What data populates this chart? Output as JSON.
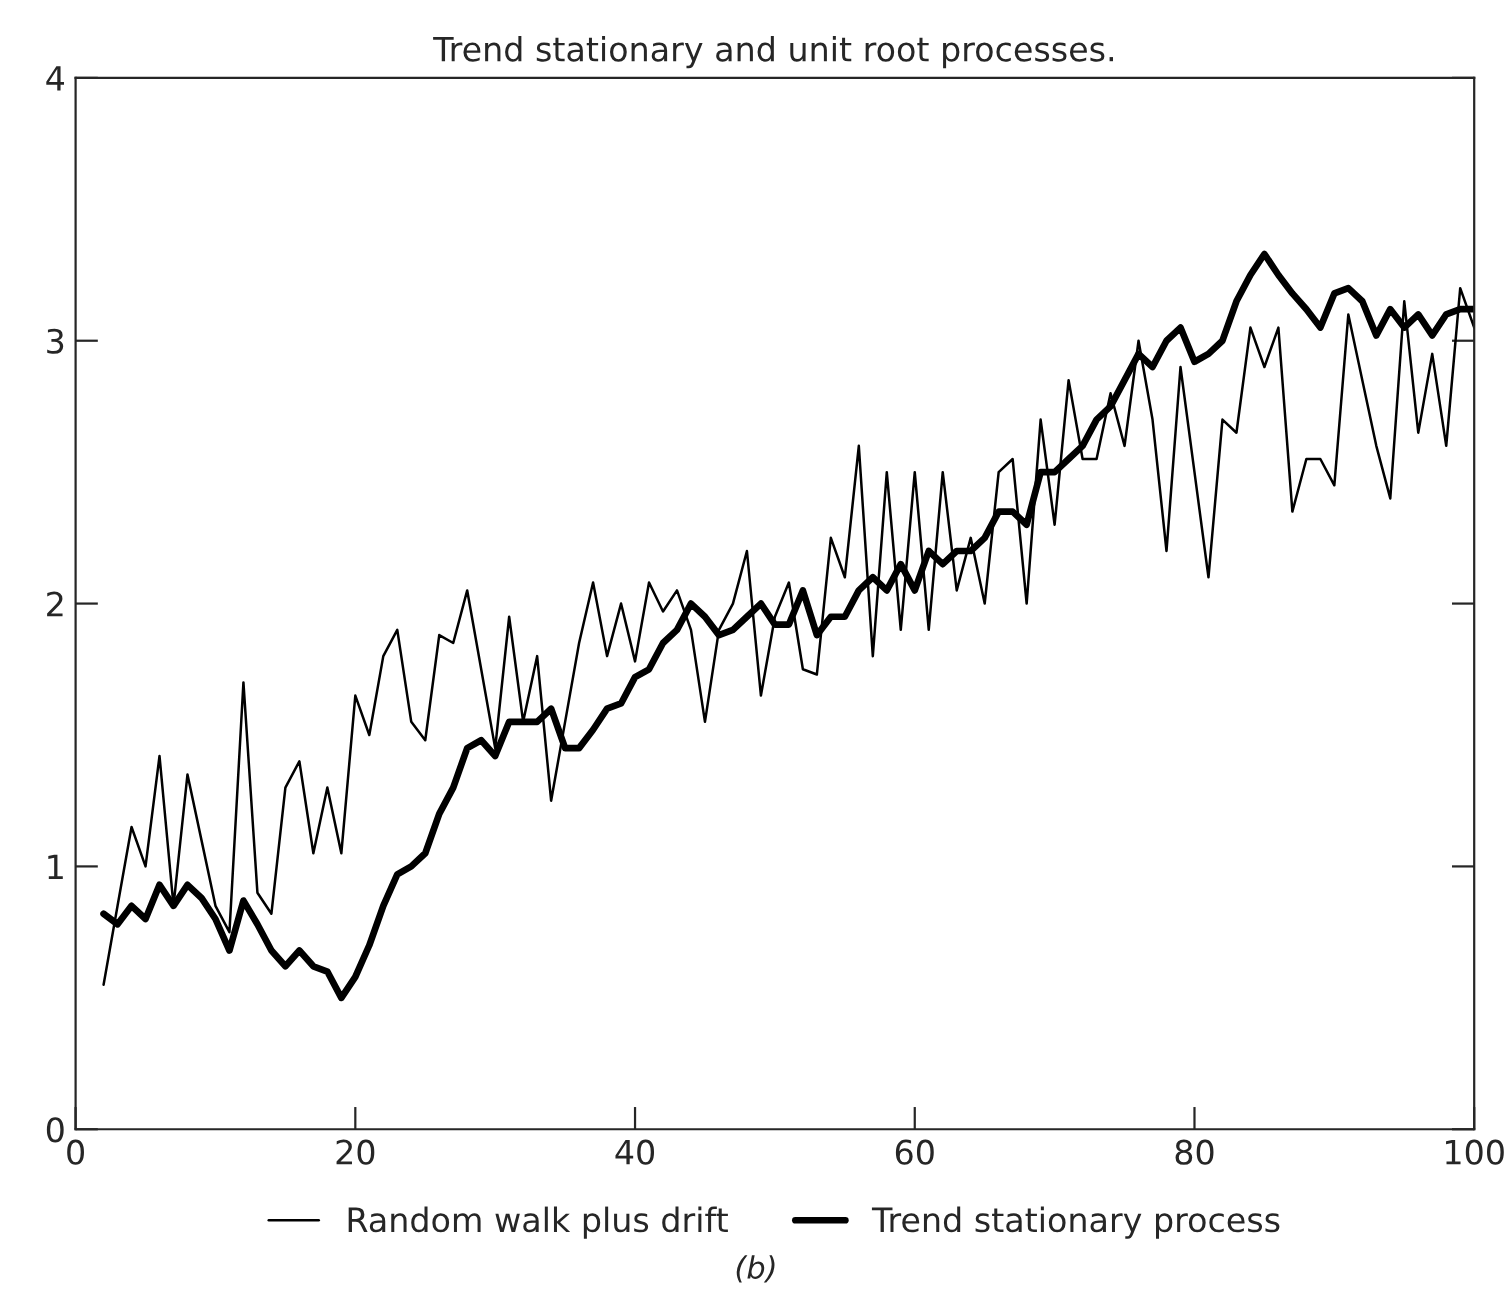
{
  "chart_data": {
    "type": "line",
    "title": "Trend stationary and unit root processes.",
    "x": [
      2,
      3,
      4,
      5,
      6,
      7,
      8,
      9,
      10,
      11,
      12,
      13,
      14,
      15,
      16,
      17,
      18,
      19,
      20,
      21,
      22,
      23,
      24,
      25,
      26,
      27,
      28,
      29,
      30,
      31,
      32,
      33,
      34,
      35,
      36,
      37,
      38,
      39,
      40,
      41,
      42,
      43,
      44,
      45,
      46,
      47,
      48,
      49,
      50,
      51,
      52,
      53,
      54,
      55,
      56,
      57,
      58,
      59,
      60,
      61,
      62,
      63,
      64,
      65,
      66,
      67,
      68,
      69,
      70,
      71,
      72,
      73,
      74,
      75,
      76,
      77,
      78,
      79,
      80,
      81,
      82,
      83,
      84,
      85,
      86,
      87,
      88,
      89,
      90,
      91,
      92,
      93,
      94,
      95,
      96,
      97,
      98,
      99,
      100
    ],
    "series": [
      {
        "name": "Random walk plus drift",
        "color": "#000000",
        "values": [
          0.55,
          0.85,
          1.15,
          1.0,
          1.42,
          0.85,
          1.35,
          1.1,
          0.85,
          0.75,
          1.7,
          0.9,
          0.82,
          1.3,
          1.4,
          1.05,
          1.3,
          1.05,
          1.65,
          1.5,
          1.8,
          1.9,
          1.55,
          1.48,
          1.88,
          1.85,
          2.05,
          1.75,
          1.45,
          1.95,
          1.55,
          1.8,
          1.25,
          1.55,
          1.85,
          2.08,
          1.8,
          2.0,
          1.78,
          2.08,
          1.97,
          2.05,
          1.9,
          1.55,
          1.9,
          2.0,
          2.2,
          1.65,
          1.95,
          2.08,
          1.75,
          1.73,
          2.25,
          2.1,
          2.6,
          1.8,
          2.5,
          1.9,
          2.5,
          1.9,
          2.5,
          2.05,
          2.25,
          2.0,
          2.5,
          2.55,
          2.0,
          2.7,
          2.3,
          2.85,
          2.55,
          2.55,
          2.8,
          2.6,
          3.0,
          2.7,
          2.2,
          2.9,
          2.5,
          2.1,
          2.7,
          2.65,
          3.05,
          2.9,
          3.05,
          2.35,
          2.55,
          2.55,
          2.45,
          3.1,
          2.85,
          2.6,
          2.4,
          3.15,
          2.65,
          2.95,
          2.6,
          3.2,
          3.05
        ]
      },
      {
        "name": "Trend stationary process",
        "color": "#000000",
        "values": [
          0.82,
          0.78,
          0.85,
          0.8,
          0.93,
          0.85,
          0.93,
          0.88,
          0.8,
          0.68,
          0.87,
          0.78,
          0.68,
          0.62,
          0.68,
          0.62,
          0.6,
          0.5,
          0.58,
          0.7,
          0.85,
          0.97,
          1.0,
          1.05,
          1.2,
          1.3,
          1.45,
          1.48,
          1.42,
          1.55,
          1.55,
          1.55,
          1.6,
          1.45,
          1.45,
          1.52,
          1.6,
          1.62,
          1.72,
          1.75,
          1.85,
          1.9,
          2.0,
          1.95,
          1.88,
          1.9,
          1.95,
          2.0,
          1.92,
          1.92,
          2.05,
          1.88,
          1.95,
          1.95,
          2.05,
          2.1,
          2.05,
          2.15,
          2.05,
          2.2,
          2.15,
          2.2,
          2.2,
          2.25,
          2.35,
          2.35,
          2.3,
          2.5,
          2.5,
          2.55,
          2.6,
          2.7,
          2.75,
          2.85,
          2.95,
          2.9,
          3.0,
          3.05,
          2.92,
          2.95,
          3.0,
          3.15,
          3.25,
          3.33,
          3.25,
          3.18,
          3.12,
          3.05,
          3.18,
          3.2,
          3.15,
          3.02,
          3.12,
          3.05,
          3.1,
          3.02,
          3.1,
          3.12,
          3.12
        ]
      }
    ],
    "xlim": [
      0,
      100
    ],
    "xticks": [
      0,
      20,
      40,
      60,
      80,
      100
    ],
    "ylim": [
      0,
      4
    ],
    "yticks": [
      0,
      1,
      2,
      3,
      4
    ],
    "grid": false,
    "legend": "bottom",
    "annotations": [
      "(b)"
    ]
  }
}
